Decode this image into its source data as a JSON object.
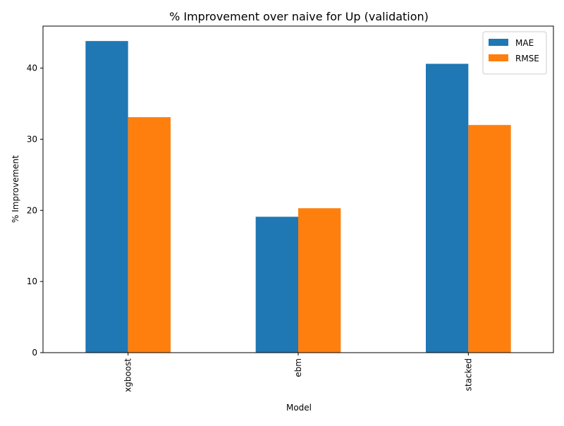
{
  "chart_data": {
    "type": "bar",
    "title": "% Improvement over naive for Up (validation)",
    "xlabel": "Model",
    "ylabel": "% Improvement",
    "categories": [
      "xgboost",
      "ebm",
      "stacked"
    ],
    "series": [
      {
        "name": "MAE",
        "values": [
          43.8,
          19.1,
          40.6
        ],
        "color": "#1f77b4"
      },
      {
        "name": "RMSE",
        "values": [
          33.1,
          20.3,
          32.0
        ],
        "color": "#ff7f0e"
      }
    ],
    "ylim": [
      0,
      45.9
    ],
    "yticks": [
      0,
      10,
      20,
      30,
      40
    ],
    "grid": false,
    "legend_position": "top-right"
  }
}
